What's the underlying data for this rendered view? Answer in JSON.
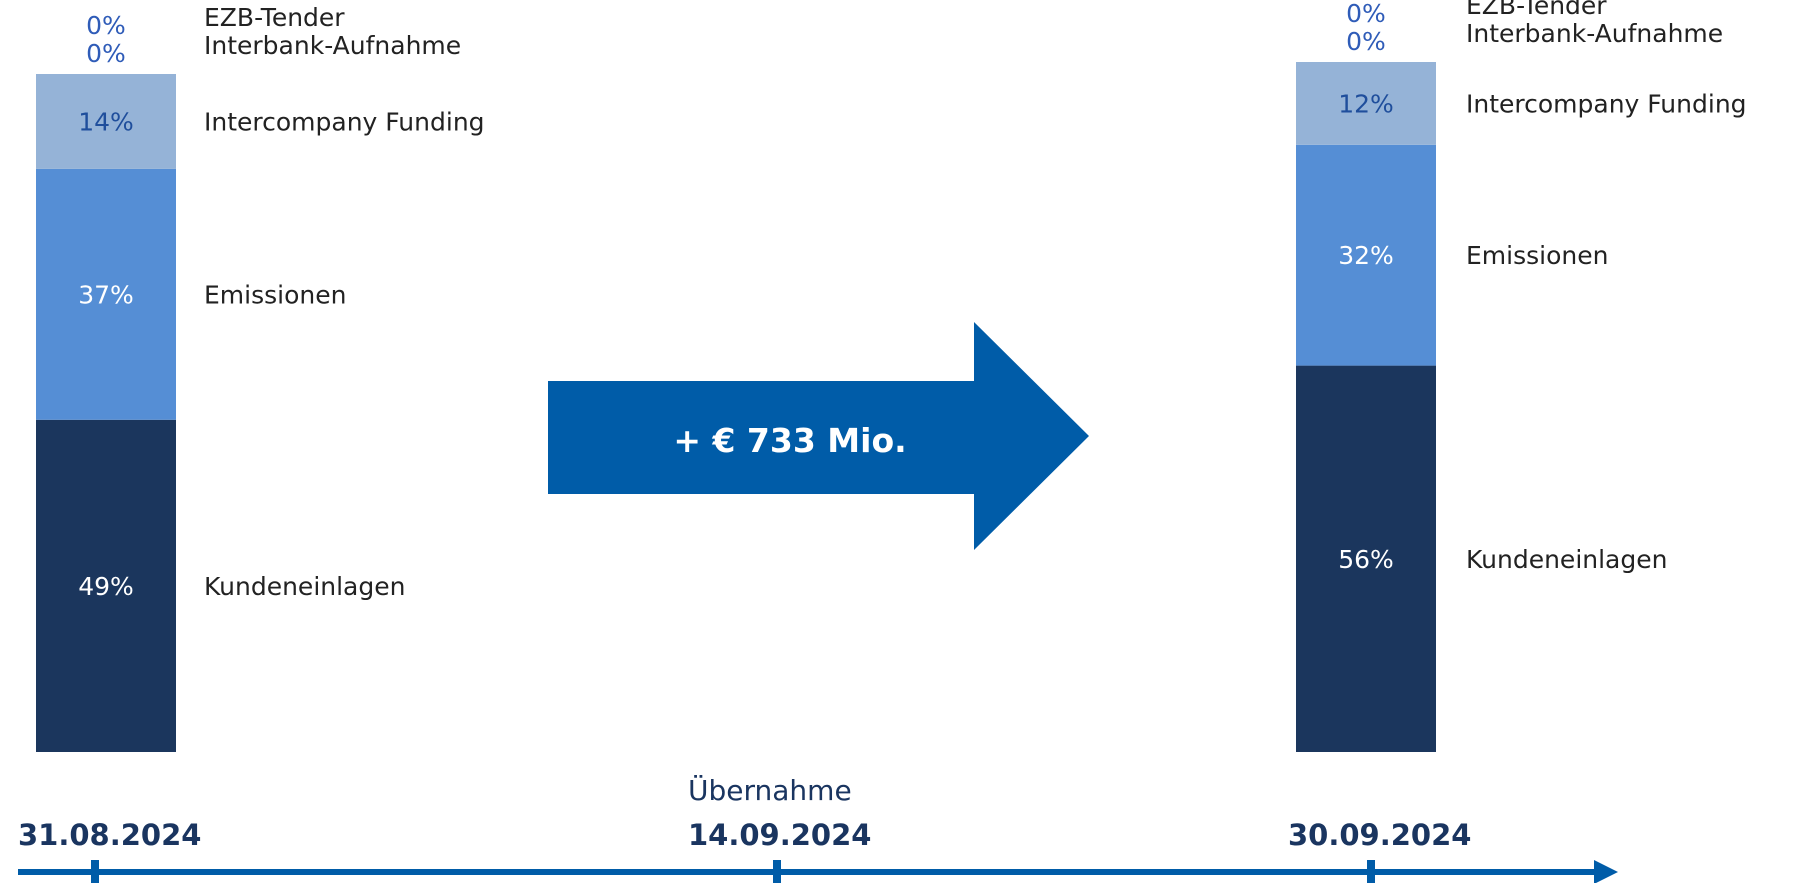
{
  "chart_data": {
    "type": "bar",
    "stacked": true,
    "categories": [
      "31.08.2024",
      "30.09.2024"
    ],
    "series": [
      {
        "name": "Kundeneinlagen",
        "values": [
          49,
          56
        ],
        "color": "#1b365d"
      },
      {
        "name": "Emissionen",
        "values": [
          37,
          32
        ],
        "color": "#558ed5"
      },
      {
        "name": "Intercompany Funding",
        "values": [
          14,
          12
        ],
        "color": "#95b3d7"
      },
      {
        "name": "Interbank-Aufnahme",
        "values": [
          0,
          0
        ],
        "color": "#c6d9f1"
      },
      {
        "name": "EZB-Tender",
        "values": [
          0,
          0
        ],
        "color": "#dbe5f1"
      }
    ],
    "value_labels": [
      [
        "49%",
        "37%",
        "14%",
        "0%",
        "0%"
      ],
      [
        "56%",
        "32%",
        "12%",
        "0%",
        "0%"
      ]
    ],
    "ylim": [
      0,
      100
    ],
    "grid": false
  },
  "arrow": {
    "label": "+ € 733 Mio.",
    "color": "#005ca8"
  },
  "timeline": {
    "color": "#005ca8",
    "dates": [
      "31.08.2024",
      "14.09.2024",
      "30.09.2024"
    ],
    "event_label": "Übernahme"
  }
}
